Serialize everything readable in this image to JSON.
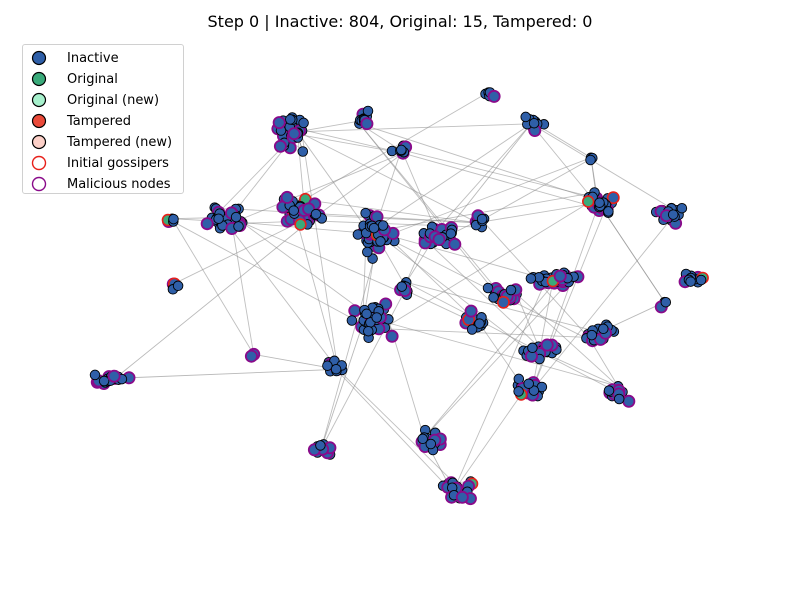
{
  "title": "Step 0 | Inactive: 804, Original: 15, Tampered: 0",
  "colors": {
    "inactive": "#2f5fa8",
    "original": "#3aaa7a",
    "original_new": "#a6f0cc",
    "tampered": "#ea4a3a",
    "tampered_new": "#fcd0c8",
    "gossiper_ring": "#e8201a",
    "malicious_ring": "#8a0a8a",
    "edge": "#8a8a8a"
  },
  "legend": [
    {
      "key": "inactive",
      "label": "Inactive",
      "fill": "#2f5fa8",
      "stroke": "#000000"
    },
    {
      "key": "original",
      "label": "Original",
      "fill": "#3aaa7a",
      "stroke": "#000000"
    },
    {
      "key": "original_new",
      "label": "Original (new)",
      "fill": "#a6f0cc",
      "stroke": "#000000"
    },
    {
      "key": "tampered",
      "label": "Tampered",
      "fill": "#ea4a3a",
      "stroke": "#000000"
    },
    {
      "key": "tampered_new",
      "label": "Tampered (new)",
      "fill": "#fcd0c8",
      "stroke": "#000000"
    },
    {
      "key": "initial_gossipers",
      "label": "Initial gossipers",
      "fill": "none",
      "stroke": "#e8201a"
    },
    {
      "key": "malicious_nodes",
      "label": "Malicious nodes",
      "fill": "none",
      "stroke": "#8a0a8a"
    }
  ]
}
